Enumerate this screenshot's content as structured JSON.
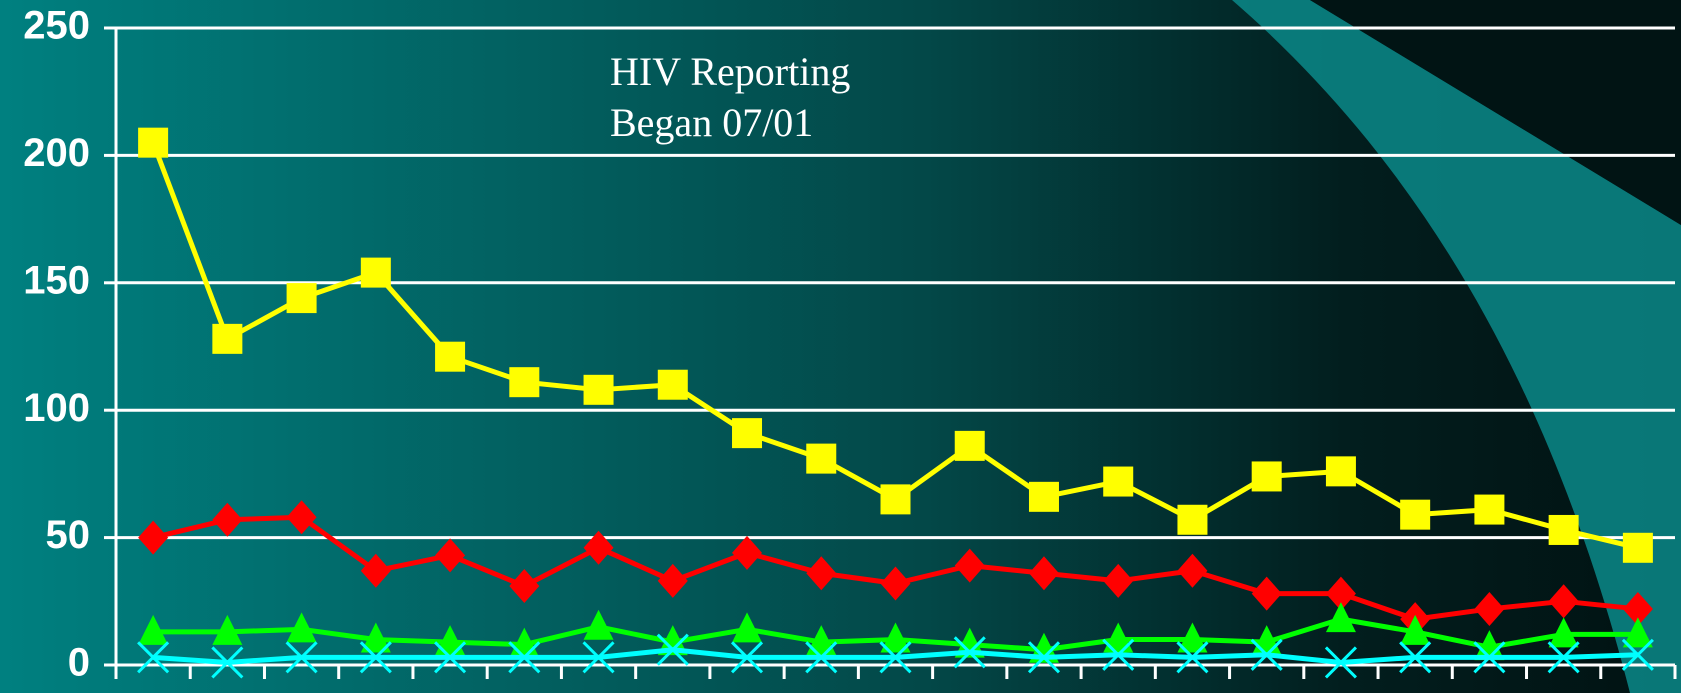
{
  "chart_data": {
    "type": "line",
    "annotation": [
      "HIV Reporting",
      "Began 07/01"
    ],
    "categories": [
      null,
      null,
      null,
      null,
      null,
      null,
      null,
      null,
      null,
      null,
      null,
      null,
      null,
      null,
      null,
      null,
      null,
      null,
      null,
      null,
      null
    ],
    "series": [
      {
        "color": "#ffff00",
        "marker": "square",
        "values": [
          205,
          128,
          144,
          154,
          121,
          111,
          108,
          110,
          91,
          81,
          65,
          86,
          66,
          72,
          57,
          74,
          76,
          59,
          61,
          53,
          46
        ]
      },
      {
        "color": "#ff0000",
        "marker": "diamond",
        "values": [
          50,
          57,
          58,
          37,
          43,
          31,
          46,
          33,
          44,
          36,
          32,
          39,
          36,
          33,
          37,
          28,
          28,
          18,
          22,
          25,
          22
        ]
      },
      {
        "color": "#00ff00",
        "marker": "triangle",
        "values": [
          13,
          13,
          14,
          10,
          9,
          8,
          15,
          9,
          14,
          9,
          10,
          8,
          6,
          10,
          10,
          9,
          18,
          13,
          7,
          12,
          12
        ]
      },
      {
        "color": "#00ffff",
        "marker": "x",
        "values": [
          3,
          1,
          3,
          3,
          3,
          3,
          3,
          6,
          3,
          3,
          3,
          5,
          3,
          4,
          3,
          4,
          1,
          3,
          3,
          3,
          4
        ]
      }
    ],
    "ylim": [
      0,
      250
    ],
    "yticks": [
      0,
      50,
      100,
      150,
      200,
      250
    ],
    "grid": true
  }
}
